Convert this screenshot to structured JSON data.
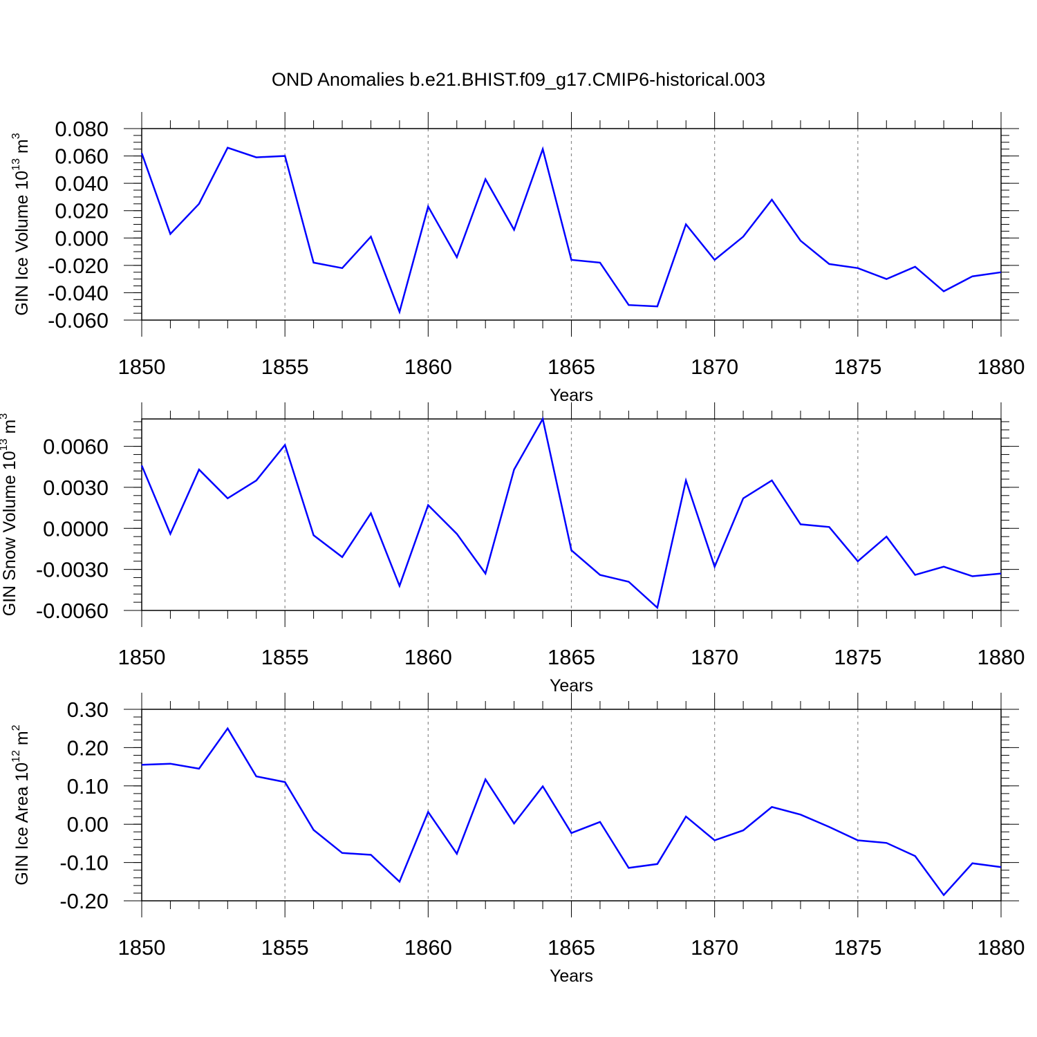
{
  "figure": {
    "title": "OND Anomalies b.e21.BHIST.f09_g17.CMIP6-historical.003"
  },
  "chart_data": [
    {
      "type": "line",
      "xlabel": "Years",
      "ylabel": {
        "text": "GIN Ice Volume 10",
        "sup": "13",
        "unit": " m",
        "unit_sup": "3"
      },
      "xlim": [
        1850,
        1880
      ],
      "ylim": [
        -0.06,
        0.08
      ],
      "x_ticks": [
        "1850",
        "1855",
        "1860",
        "1865",
        "1870",
        "1875",
        "1880"
      ],
      "y_ticks": [
        {
          "value": 0.08,
          "label": "0.080"
        },
        {
          "value": 0.06,
          "label": "0.060"
        },
        {
          "value": 0.04,
          "label": "0.040"
        },
        {
          "value": 0.02,
          "label": "0.020"
        },
        {
          "value": 0.0,
          "label": "0.000"
        },
        {
          "value": -0.02,
          "label": "-0.020"
        },
        {
          "value": -0.04,
          "label": "-0.040"
        },
        {
          "value": -0.06,
          "label": "-0.060"
        }
      ],
      "y_minor_step": 0.005,
      "vertical_grid_at": [
        1855,
        1860,
        1865,
        1870,
        1875
      ],
      "color": "#0000ff",
      "x": [
        1850,
        1851,
        1852,
        1853,
        1854,
        1855,
        1856,
        1857,
        1858,
        1859,
        1860,
        1861,
        1862,
        1863,
        1864,
        1865,
        1866,
        1867,
        1868,
        1869,
        1870,
        1871,
        1872,
        1873,
        1874,
        1875,
        1876,
        1877,
        1878,
        1879,
        1880
      ],
      "values": [
        0.062,
        0.003,
        0.025,
        0.066,
        0.059,
        0.06,
        -0.018,
        -0.022,
        0.001,
        -0.054,
        0.023,
        -0.014,
        0.043,
        0.006,
        0.065,
        -0.016,
        -0.018,
        -0.049,
        -0.05,
        0.01,
        -0.016,
        0.001,
        0.028,
        -0.002,
        -0.019,
        -0.022,
        -0.03,
        -0.021,
        -0.039,
        -0.028,
        -0.025
      ]
    },
    {
      "type": "line",
      "xlabel": "Years",
      "ylabel": {
        "text": "GIN Snow Volume 10",
        "sup": "13",
        "unit": " m",
        "unit_sup": "3"
      },
      "xlim": [
        1850,
        1880
      ],
      "ylim": [
        -0.006,
        0.008
      ],
      "x_ticks": [
        "1850",
        "1855",
        "1860",
        "1865",
        "1870",
        "1875",
        "1880"
      ],
      "y_ticks": [
        {
          "value": 0.006,
          "label": "0.0060"
        },
        {
          "value": 0.003,
          "label": "0.0030"
        },
        {
          "value": 0.0,
          "label": "0.0000"
        },
        {
          "value": -0.003,
          "label": "-0.0030"
        },
        {
          "value": -0.006,
          "label": "-0.0060"
        }
      ],
      "y_minor_step": 0.0006,
      "vertical_grid_at": [
        1855,
        1860,
        1865,
        1870,
        1875
      ],
      "color": "#0000ff",
      "x": [
        1850,
        1851,
        1852,
        1853,
        1854,
        1855,
        1856,
        1857,
        1858,
        1859,
        1860,
        1861,
        1862,
        1863,
        1864,
        1865,
        1866,
        1867,
        1868,
        1869,
        1870,
        1871,
        1872,
        1873,
        1874,
        1875,
        1876,
        1877,
        1878,
        1879,
        1880
      ],
      "values": [
        0.0046,
        -0.0004,
        0.0043,
        0.0022,
        0.0035,
        0.0061,
        -0.0005,
        -0.0021,
        0.0011,
        -0.0042,
        0.0017,
        -0.0004,
        -0.0033,
        0.0043,
        0.008,
        -0.0016,
        -0.0034,
        -0.0039,
        -0.0058,
        0.0035,
        -0.0028,
        0.0022,
        0.0035,
        0.0003,
        0.0001,
        -0.0024,
        -0.0006,
        -0.0034,
        -0.0028,
        -0.0035,
        -0.0033
      ]
    },
    {
      "type": "line",
      "xlabel": "Years",
      "ylabel": {
        "text": "GIN Ice Area 10",
        "sup": "12",
        "unit": " m",
        "unit_sup": "2"
      },
      "xlim": [
        1850,
        1880
      ],
      "ylim": [
        -0.2,
        0.3
      ],
      "x_ticks": [
        "1850",
        "1855",
        "1860",
        "1865",
        "1870",
        "1875",
        "1880"
      ],
      "y_ticks": [
        {
          "value": 0.3,
          "label": "0.30"
        },
        {
          "value": 0.2,
          "label": "0.20"
        },
        {
          "value": 0.1,
          "label": "0.10"
        },
        {
          "value": 0.0,
          "label": "0.00"
        },
        {
          "value": -0.1,
          "label": "-0.10"
        },
        {
          "value": -0.2,
          "label": "-0.20"
        }
      ],
      "y_minor_step": 0.02,
      "vertical_grid_at": [
        1855,
        1860,
        1865,
        1870,
        1875
      ],
      "color": "#0000ff",
      "x": [
        1850,
        1851,
        1852,
        1853,
        1854,
        1855,
        1856,
        1857,
        1858,
        1859,
        1860,
        1861,
        1862,
        1863,
        1864,
        1865,
        1866,
        1867,
        1868,
        1869,
        1870,
        1871,
        1872,
        1873,
        1874,
        1875,
        1876,
        1877,
        1878,
        1879,
        1880
      ],
      "values": [
        0.155,
        0.158,
        0.145,
        0.25,
        0.125,
        0.11,
        -0.015,
        -0.075,
        -0.08,
        -0.15,
        0.032,
        -0.077,
        0.117,
        0.002,
        0.099,
        -0.023,
        0.006,
        -0.114,
        -0.104,
        0.02,
        -0.042,
        -0.016,
        0.045,
        0.025,
        -0.007,
        -0.042,
        -0.049,
        -0.083,
        -0.185,
        -0.102,
        -0.112
      ]
    }
  ]
}
